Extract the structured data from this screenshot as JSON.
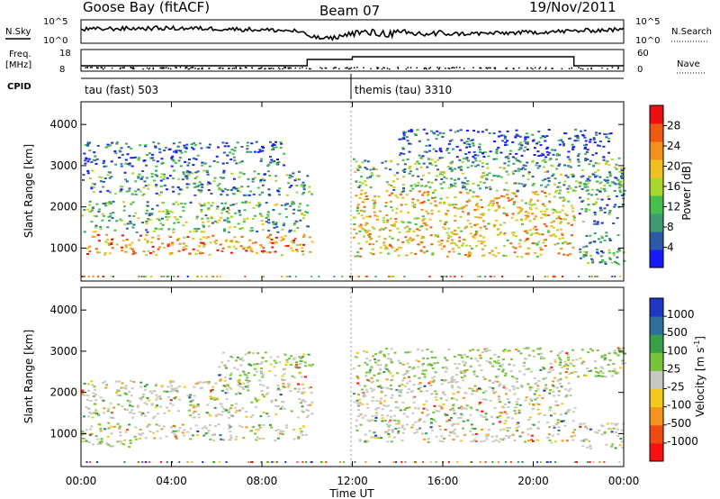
{
  "header": {
    "station": "Goose Bay (fitACF)",
    "beam": "Beam 07",
    "date": "19/Nov/2011"
  },
  "top_panel": {
    "nsky_label": "N.Sky",
    "nsky_ticks": [
      "10^5",
      "10^0"
    ],
    "nsearch_label": "N.Search",
    "nsearch_ticks": [
      "10^5",
      "10^0"
    ],
    "freq_label_line1": "Freq.",
    "freq_label_line2": "[MHz]",
    "freq_ticks": [
      "18",
      "8"
    ],
    "nave_label": "Nave",
    "nave_ticks": [
      "60",
      "0"
    ],
    "cpid_label": "CPID",
    "cpid_modes": [
      {
        "name": "tau (fast) 503",
        "start_hour": 0
      },
      {
        "name": "themis (tau) 3310",
        "start_hour": 12
      }
    ]
  },
  "x_axis": {
    "label": "Time UT",
    "tick_labels": [
      "00:00",
      "04:00",
      "08:00",
      "12:00",
      "16:00",
      "20:00",
      "00:00"
    ]
  },
  "colors": {
    "power": [
      "#1a1aff",
      "#2a5aa8",
      "#3f9c72",
      "#45c04a",
      "#a8d82c",
      "#f0c020",
      "#f5901a",
      "#ee5a10",
      "#ee1010"
    ],
    "velocity": [
      "#ff1010",
      "#f04a10",
      "#f5941c",
      "#f5c81e",
      "#c8c8c0",
      "#76c43a",
      "#35a045",
      "#2f6fa0",
      "#2036c8"
    ]
  },
  "chart_data": [
    {
      "type": "heatmap",
      "name": "power",
      "ylabel": "Slant Range [km]",
      "ylim": [
        200,
        4550
      ],
      "yticks": [
        1000,
        2000,
        3000,
        4000
      ],
      "xlim": [
        0,
        24
      ],
      "colorbar_label": "Power [dB]",
      "colorbar_ticks": [
        "4",
        "8",
        "12",
        "16",
        "20",
        "24",
        "28"
      ],
      "colorbar_range": [
        0,
        32
      ],
      "scatter_bands": [
        {
          "t0": 0.2,
          "t1": 10.2,
          "r0": 850,
          "r1": 1350,
          "level": 0.75
        },
        {
          "t0": 0.0,
          "t1": 10.0,
          "r0": 1400,
          "r1": 2150,
          "level": 0.35
        },
        {
          "t0": 0.0,
          "t1": 10.2,
          "r0": 2300,
          "r1": 2900,
          "level": 0.28
        },
        {
          "t0": 0.0,
          "t1": 9.0,
          "r0": 3000,
          "r1": 3600,
          "level": 0.12
        },
        {
          "t0": 12.0,
          "t1": 21.8,
          "r0": 800,
          "r1": 2400,
          "level": 0.65
        },
        {
          "t0": 12.0,
          "t1": 24.0,
          "r0": 2400,
          "r1": 3200,
          "level": 0.35
        },
        {
          "t0": 14.0,
          "t1": 23.5,
          "r0": 3200,
          "r1": 3900,
          "level": 0.1
        },
        {
          "t0": 22.0,
          "t1": 24.0,
          "r0": 600,
          "r1": 1400,
          "level": 0.3
        },
        {
          "t0": 22.0,
          "t1": 24.0,
          "r0": 1600,
          "r1": 2800,
          "level": 0.25
        }
      ]
    },
    {
      "type": "heatmap",
      "name": "velocity",
      "ylabel": "Slant Range [km]",
      "ylim": [
        200,
        4550
      ],
      "yticks": [
        1000,
        2000,
        3000,
        4000
      ],
      "xlim": [
        0,
        24
      ],
      "colorbar_label": "Velocity [m s-1]",
      "colorbar_ticks": [
        "1000",
        "500",
        "100",
        "25",
        "-25",
        "-100",
        "-500",
        "-1000"
      ],
      "scatter_bands": [
        {
          "t0": 0.0,
          "t1": 2.5,
          "r0": 700,
          "r1": 1300,
          "level": 0.7
        },
        {
          "t0": 2.5,
          "t1": 10.0,
          "r0": 850,
          "r1": 1250,
          "level": 0.5
        },
        {
          "t0": 0.0,
          "t1": 10.2,
          "r0": 1400,
          "r1": 2300,
          "level": 0.5
        },
        {
          "t0": 6.0,
          "t1": 10.2,
          "r0": 2300,
          "r1": 3000,
          "level": 0.6
        },
        {
          "t0": 12.0,
          "t1": 21.8,
          "r0": 800,
          "r1": 2400,
          "level": 0.45
        },
        {
          "t0": 12.0,
          "t1": 24.0,
          "r0": 2400,
          "r1": 3100,
          "level": 0.6
        },
        {
          "t0": 22.0,
          "t1": 24.0,
          "r0": 650,
          "r1": 1300,
          "level": 0.4
        }
      ]
    }
  ]
}
